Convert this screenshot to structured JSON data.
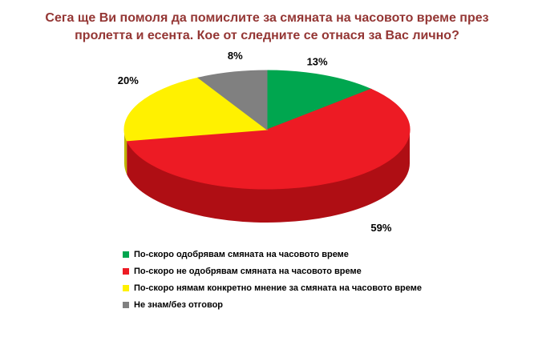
{
  "title": {
    "lines": [
      "Сега ще Ви помоля да помислите за смяната на часовото време през",
      "пролетта и есента. Кое от следните се отнася за Вас лично?"
    ],
    "color": "#943634"
  },
  "chart_data": {
    "type": "pie",
    "effect": "3d",
    "title": "Сега ще Ви помоля да помислите за смяната на часовото време през пролетта и есента. Кое от следните се отнася за Вас лично?",
    "categories": [
      "По-скоро одобрявам смяната на часовото време",
      "По-скоро не одобрявам смяната на часовото време",
      "По-скоро нямам конкретно мнение за смяната на часовото време",
      "Не знам/без отговор"
    ],
    "values": [
      13,
      59,
      20,
      8
    ],
    "value_labels": [
      "13%",
      "59%",
      "20%",
      "8%"
    ],
    "colors": [
      "#00A64F",
      "#ED1B24",
      "#FFF100",
      "#808080"
    ],
    "side_colors": [
      "#00743A",
      "#AF0E14",
      "#BDB400",
      "#5A5A5A"
    ],
    "start_angle_deg": 0,
    "direction": "clockwise",
    "legend_position": "bottom-left",
    "background": "#FFFFFF"
  },
  "legend": {
    "items": [
      {
        "label": "По-скоро одобрявам смяната на часовото време",
        "color": "#00A64F"
      },
      {
        "label": "По-скоро не одобрявам смяната на часовото време",
        "color": "#ED1B24"
      },
      {
        "label": "По-скоро нямам конкретно мнение за смяната на часовото време",
        "color": "#FFF100"
      },
      {
        "label": "Не знам/без отговор",
        "color": "#808080"
      }
    ]
  }
}
